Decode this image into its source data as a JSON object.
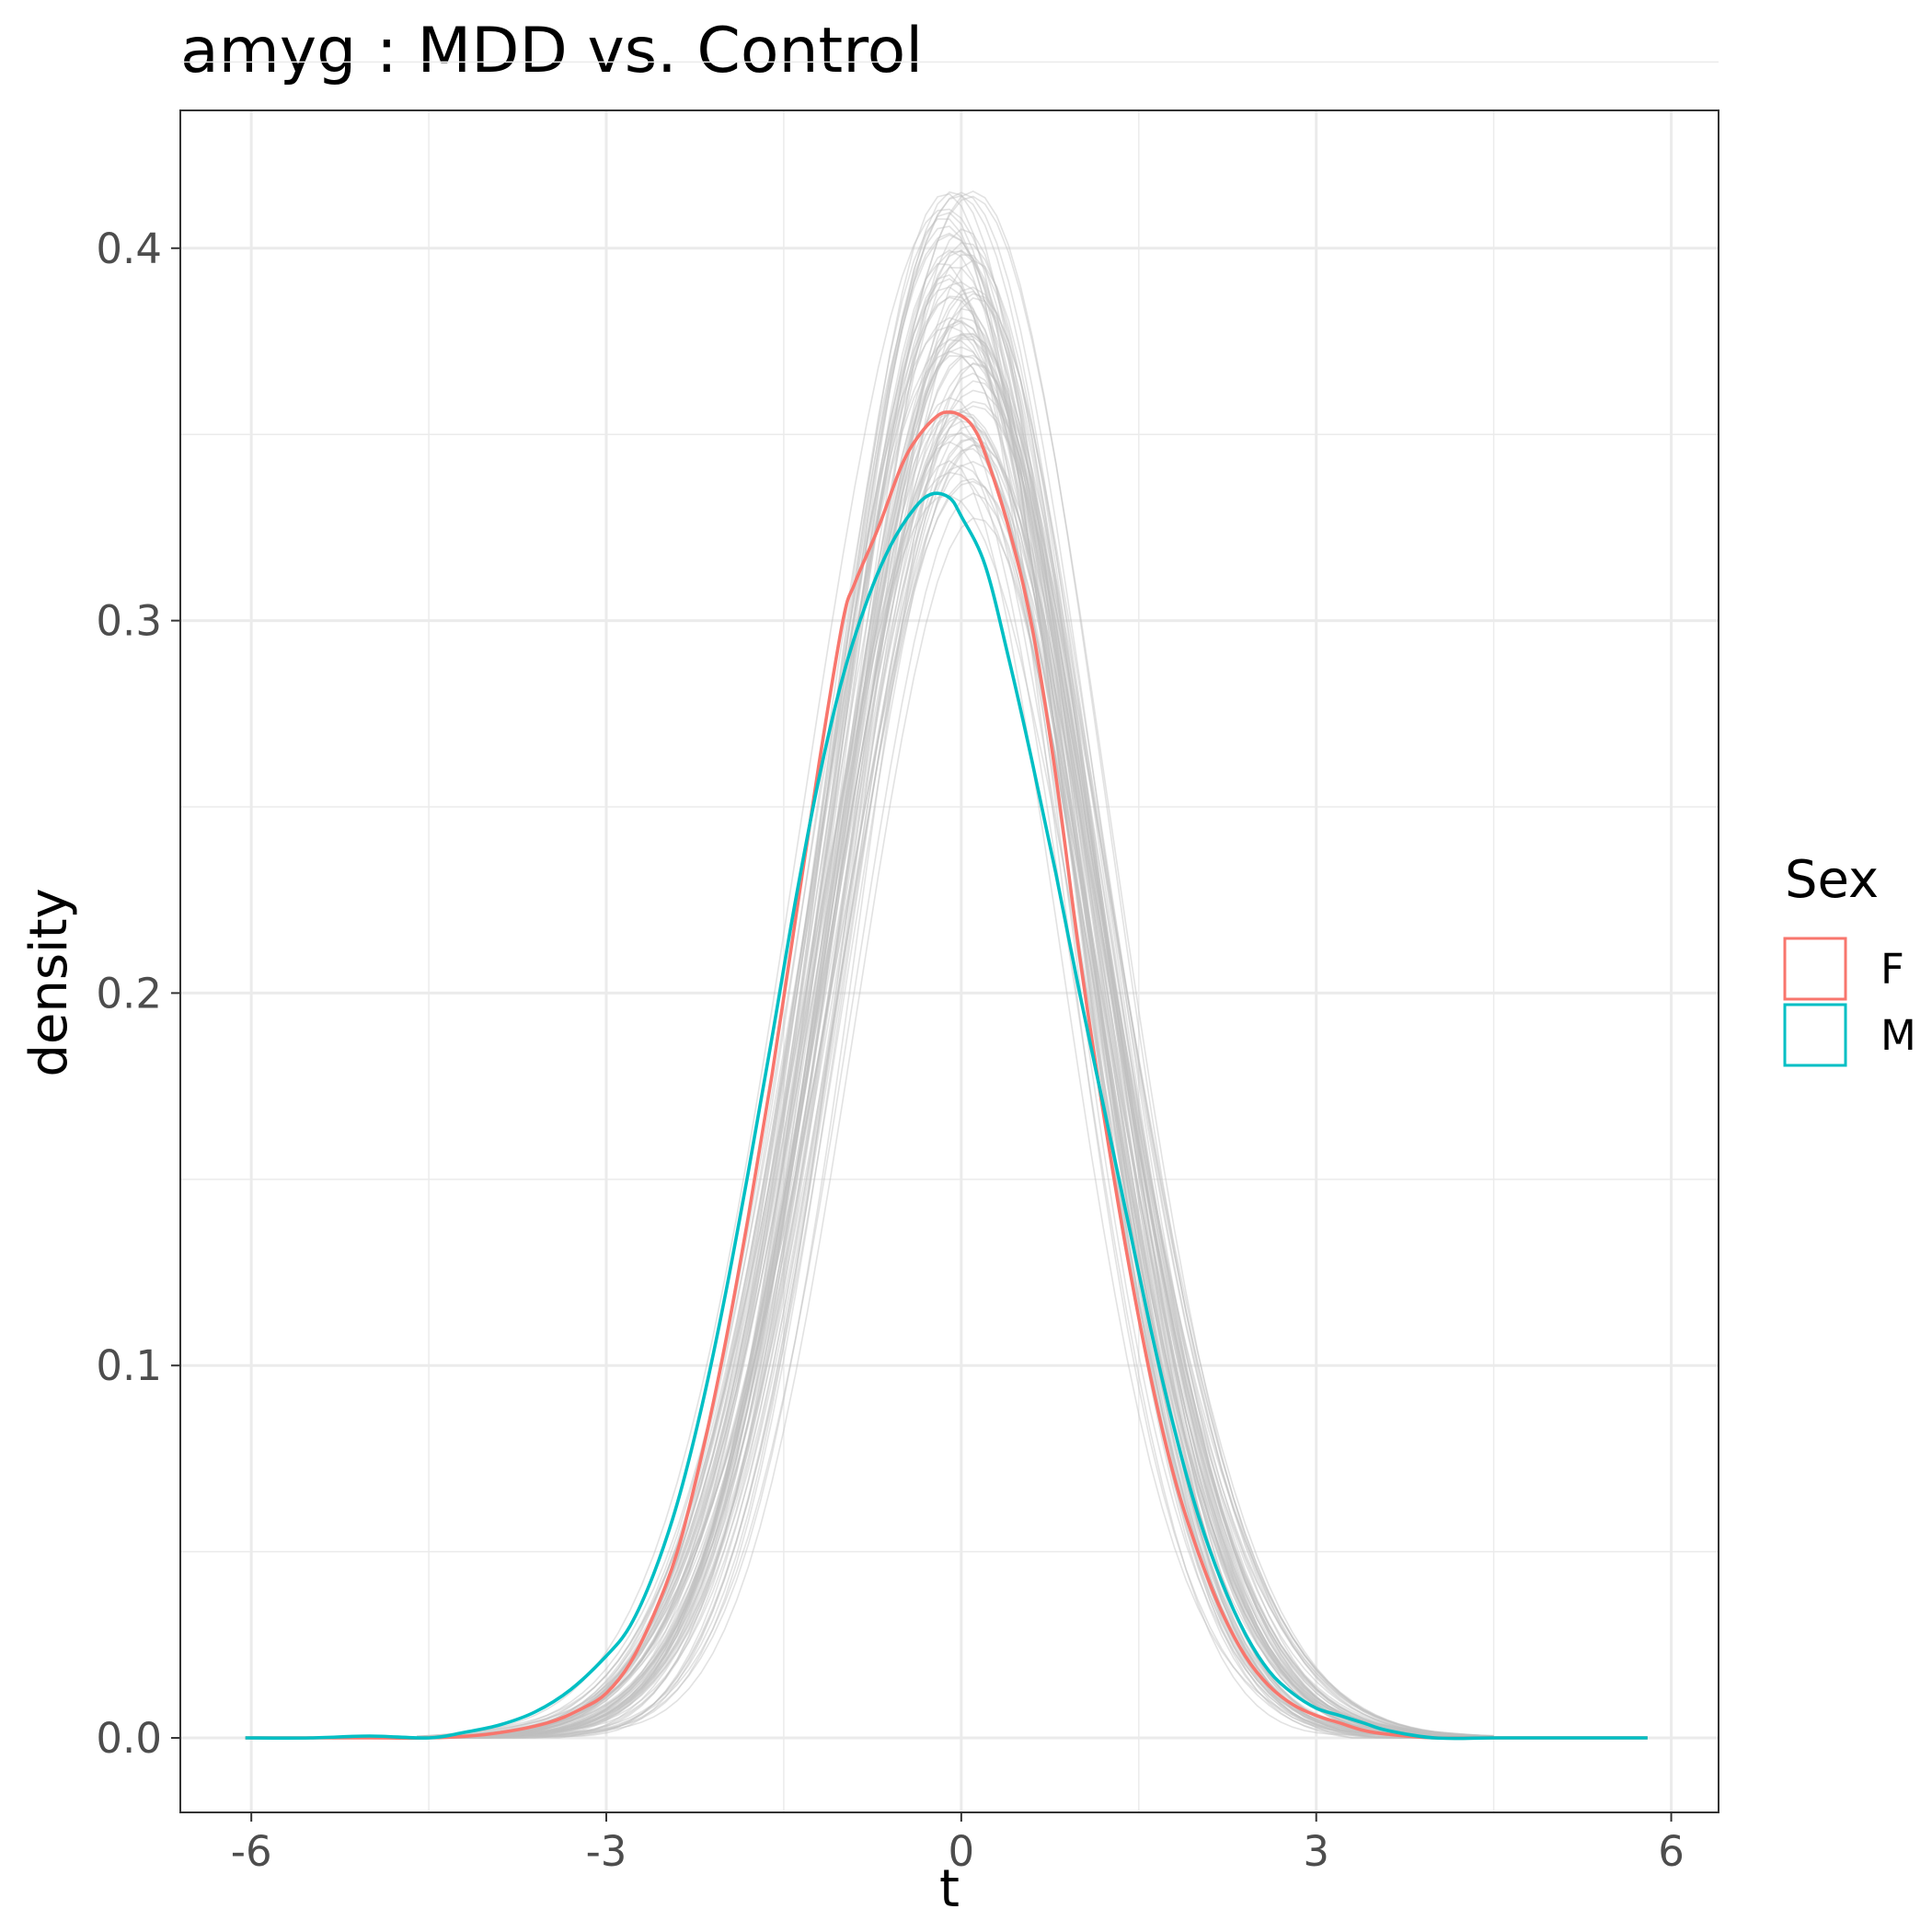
{
  "chart_data": {
    "type": "line",
    "subtype": "density",
    "title": "amyg : MDD vs. Control",
    "xlabel": "t",
    "ylabel": "density",
    "xlim": [
      -6.6,
      6.4
    ],
    "ylim": [
      -0.02,
      0.437
    ],
    "x_ticks": [
      -6,
      -3,
      0,
      3,
      6
    ],
    "x_tick_labels": [
      "-6",
      "-3",
      "0",
      "3",
      "6"
    ],
    "y_ticks": [
      0.0,
      0.1,
      0.2,
      0.3,
      0.4
    ],
    "y_tick_labels": [
      "0.0",
      "0.1",
      "0.2",
      "0.3",
      "0.4"
    ],
    "grid": true,
    "legend": {
      "title": "Sex",
      "position": "right",
      "entries": [
        {
          "label": "F",
          "color": "#F8766D"
        },
        {
          "label": "M",
          "color": "#00BFC4"
        }
      ]
    },
    "background_series": {
      "description": "permutation null densities",
      "color": "#BEBEBE",
      "count": 80,
      "peak_range": [
        0.33,
        0.417
      ],
      "sd_range": [
        0.96,
        1.2
      ],
      "center_range": [
        -0.15,
        0.15
      ]
    },
    "series": [
      {
        "name": "F",
        "color": "#F8766D",
        "x": [
          -6.05,
          -5.0,
          -4.5,
          -4.0,
          -3.5,
          -3.2,
          -3.0,
          -2.8,
          -2.6,
          -2.4,
          -2.2,
          -2.0,
          -1.8,
          -1.6,
          -1.4,
          -1.2,
          -1.0,
          -0.9,
          -0.7,
          -0.5,
          -0.35,
          -0.2,
          -0.1,
          0.0,
          0.1,
          0.2,
          0.4,
          0.6,
          0.8,
          1.0,
          1.2,
          1.4,
          1.6,
          1.8,
          2.0,
          2.2,
          2.4,
          2.6,
          2.8,
          3.0,
          3.2,
          3.4,
          3.6,
          4.0,
          4.5,
          5.0,
          5.8
        ],
        "y": [
          0.0,
          0.0,
          0.0,
          0.001,
          0.004,
          0.008,
          0.012,
          0.02,
          0.033,
          0.05,
          0.075,
          0.105,
          0.14,
          0.178,
          0.22,
          0.262,
          0.3,
          0.31,
          0.325,
          0.342,
          0.35,
          0.355,
          0.356,
          0.355,
          0.352,
          0.345,
          0.325,
          0.298,
          0.258,
          0.21,
          0.168,
          0.13,
          0.097,
          0.07,
          0.05,
          0.034,
          0.022,
          0.014,
          0.009,
          0.006,
          0.004,
          0.002,
          0.001,
          0.0,
          0.0,
          0.0,
          0.0
        ]
      },
      {
        "name": "M",
        "color": "#00BFC4",
        "x": [
          -6.05,
          -5.5,
          -5.0,
          -4.5,
          -4.2,
          -3.9,
          -3.6,
          -3.3,
          -3.0,
          -2.8,
          -2.6,
          -2.4,
          -2.2,
          -2.0,
          -1.8,
          -1.6,
          -1.4,
          -1.2,
          -1.0,
          -0.8,
          -0.6,
          -0.4,
          -0.25,
          -0.1,
          0.0,
          0.2,
          0.4,
          0.6,
          0.8,
          1.0,
          1.2,
          1.4,
          1.6,
          1.8,
          2.0,
          2.2,
          2.4,
          2.6,
          2.8,
          3.0,
          3.2,
          3.4,
          3.6,
          4.0,
          4.5,
          5.0,
          5.8
        ],
        "y": [
          0.0,
          0.0,
          0.0005,
          0.0,
          0.0015,
          0.0035,
          0.007,
          0.013,
          0.022,
          0.03,
          0.044,
          0.063,
          0.088,
          0.118,
          0.152,
          0.188,
          0.225,
          0.258,
          0.285,
          0.305,
          0.32,
          0.33,
          0.334,
          0.333,
          0.328,
          0.315,
          0.29,
          0.262,
          0.232,
          0.2,
          0.17,
          0.14,
          0.11,
          0.083,
          0.06,
          0.042,
          0.028,
          0.018,
          0.012,
          0.008,
          0.006,
          0.004,
          0.002,
          0.0,
          0.0,
          0.0,
          0.0
        ]
      }
    ]
  }
}
